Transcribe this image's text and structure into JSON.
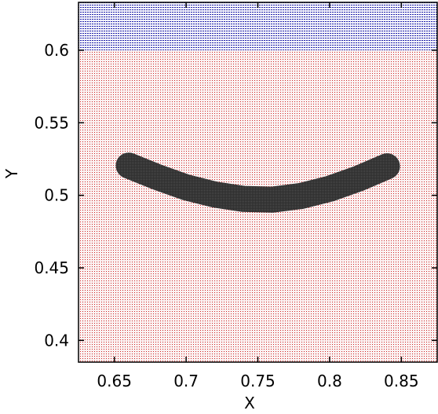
{
  "chart_data": {
    "type": "heatmap",
    "title": "",
    "xlabel": "X",
    "ylabel": "Y",
    "xlim": [
      0.625,
      0.875
    ],
    "ylim": [
      0.385,
      0.633
    ],
    "xticks": [
      0.65,
      0.7,
      0.75,
      0.8,
      0.85
    ],
    "yticks": [
      0.4,
      0.45,
      0.5,
      0.55,
      0.6
    ],
    "xtick_labels": [
      "0.65",
      "0.7",
      "0.75",
      "0.8",
      "0.85"
    ],
    "ytick_labels": [
      "0.4",
      "0.45",
      "0.5",
      "0.55",
      "0.6"
    ],
    "regions": [
      {
        "label": "",
        "color": "#cc2222",
        "pattern": "dotted",
        "y_range": [
          0.385,
          0.6
        ]
      },
      {
        "label": "",
        "color": "#2222aa",
        "pattern": "dashed-horizontal",
        "y_range": [
          0.6,
          0.633
        ]
      }
    ],
    "arc_region": {
      "color": "#333333",
      "centerline": [
        {
          "x": 0.66,
          "y": 0.5205
        },
        {
          "x": 0.68,
          "y": 0.5125
        },
        {
          "x": 0.7,
          "y": 0.5055
        },
        {
          "x": 0.72,
          "y": 0.5005
        },
        {
          "x": 0.74,
          "y": 0.4975
        },
        {
          "x": 0.76,
          "y": 0.497
        },
        {
          "x": 0.78,
          "y": 0.4995
        },
        {
          "x": 0.8,
          "y": 0.5045
        },
        {
          "x": 0.82,
          "y": 0.5115
        },
        {
          "x": 0.84,
          "y": 0.52
        }
      ],
      "thickness": 0.018
    }
  }
}
